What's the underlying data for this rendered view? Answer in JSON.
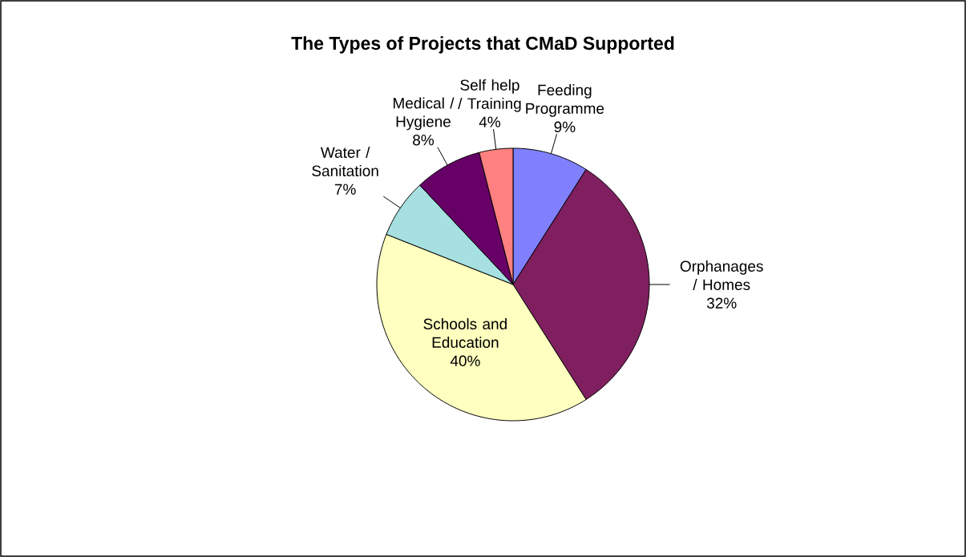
{
  "chart_data": {
    "type": "pie",
    "title": "The Types of Projects that CMaD Supported",
    "categories": [
      "Feeding Programme",
      "Orphanages / Homes",
      "Schools and Education",
      "Water / Sanitation",
      "Medical / Hygiene",
      "Self help / Training"
    ],
    "values": [
      9,
      32,
      40,
      7,
      8,
      4
    ],
    "value_labels": [
      "9%",
      "32%",
      "40%",
      "7%",
      "8%",
      "4%"
    ],
    "colors": [
      "#8080ff",
      "#7f1f5f",
      "#ffffc0",
      "#a6e0e0",
      "#660066",
      "#ff8080"
    ]
  }
}
